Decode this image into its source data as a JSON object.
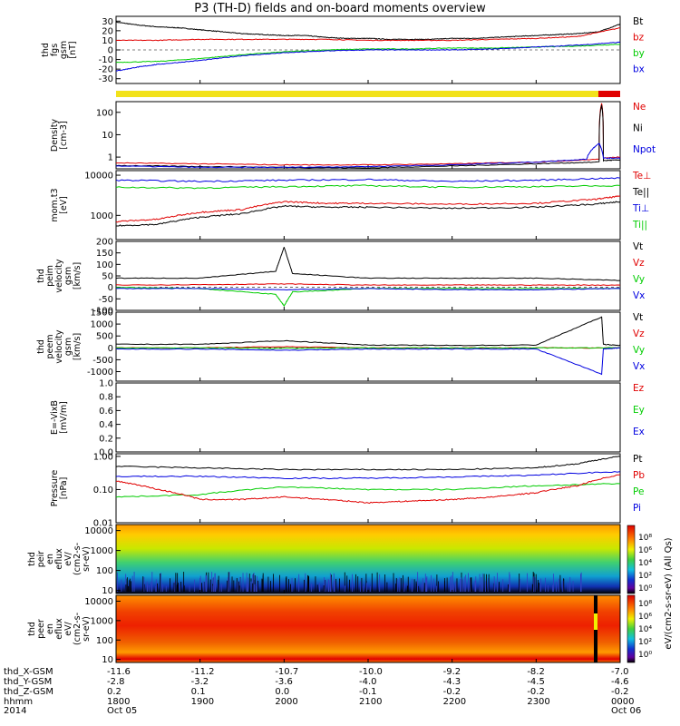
{
  "title": "P3 (TH-D) fields and on-board moments overview",
  "chart_data": {
    "type": "line",
    "title": "P3 (TH-D) fields and on-board moments overview",
    "time_axis": {
      "labels": [
        "1800",
        "1900",
        "2000",
        "2100",
        "2200",
        "2300",
        "0000"
      ],
      "dates": [
        "Oct 05",
        "Oct 06"
      ],
      "year": "2014"
    },
    "orbit_table": {
      "rows": [
        {
          "label": "thd_X-GSM",
          "values": [
            "-11.6",
            "-11.2",
            "-10.7",
            "-10.0",
            "-9.2",
            "-8.2",
            "-7.0"
          ]
        },
        {
          "label": "thd_Y-GSM",
          "values": [
            "-2.8",
            "-3.2",
            "-3.6",
            "-4.0",
            "-4.3",
            "-4.5",
            "-4.6"
          ]
        },
        {
          "label": "thd_Z-GSM",
          "values": [
            "0.2",
            "0.1",
            "0.0",
            "-0.1",
            "-0.2",
            "-0.2",
            "-0.2"
          ]
        },
        {
          "label": "hhmm",
          "values": [
            "1800",
            "1900",
            "2000",
            "2100",
            "2200",
            "2300",
            "0000"
          ]
        },
        {
          "label": "2014",
          "values": [
            "Oct 05",
            "",
            "",
            "",
            "",
            "",
            "Oct 06"
          ]
        }
      ]
    },
    "panels": [
      {
        "ylabel": [
          "thd",
          "fgs",
          "gsm",
          "[nT]"
        ],
        "ylim": [
          -35,
          35
        ],
        "ticks": [
          "30",
          "20",
          "10",
          "0",
          "-10",
          "-20",
          "-30"
        ],
        "legend": [
          {
            "name": "Bt",
            "color": "#000000"
          },
          {
            "name": "bz",
            "color": "#e00000"
          },
          {
            "name": "by",
            "color": "#00cc00"
          },
          {
            "name": "bx",
            "color": "#0000e0"
          }
        ],
        "series": [
          {
            "color": "#000000",
            "x": [
              0,
              0.25,
              0.5,
              0.75,
              1.0,
              1.25,
              1.5,
              1.75,
              2.0,
              2.25,
              2.5,
              2.75,
              3.0,
              3.25,
              3.5,
              3.75,
              4.0,
              4.25,
              4.5,
              4.75,
              5.0,
              5.25,
              5.5,
              5.75,
              6.0
            ],
            "y": [
              29,
              26,
              24,
              23,
              21,
              19,
              17,
              16,
              15,
              15,
              13,
              12,
              12,
              11,
              11,
              11,
              12,
              12,
              13,
              14,
              15,
              16,
              17,
              19,
              27
            ]
          },
          {
            "color": "#e00000",
            "x": [
              0,
              0.5,
              1.0,
              1.5,
              2.0,
              2.5,
              3.0,
              3.5,
              4.0,
              4.5,
              5.0,
              5.5,
              6.0
            ],
            "y": [
              10,
              10,
              11,
              11,
              11,
              11,
              10,
              10,
              10,
              11,
              12,
              14,
              23
            ]
          },
          {
            "color": "#00cc00",
            "x": [
              0,
              0.5,
              1.0,
              1.5,
              2.0,
              2.5,
              3.0,
              3.5,
              4.0,
              4.5,
              5.0,
              5.5,
              6.0
            ],
            "y": [
              -13,
              -12,
              -9,
              -5,
              -2,
              0,
              1,
              1,
              2,
              2,
              3,
              4,
              6
            ]
          },
          {
            "color": "#0000e0",
            "x": [
              0,
              0.25,
              0.5,
              1.0,
              1.5,
              2.0,
              2.5,
              3.0,
              3.5,
              4.0,
              4.5,
              5.0,
              5.5,
              6.0
            ],
            "y": [
              -22,
              -18,
              -15,
              -11,
              -6,
              -3,
              -1,
              0,
              0,
              0,
              1,
              3,
              5,
              8
            ]
          }
        ]
      },
      {
        "ylabel": [
          "Density",
          "[cm-3]"
        ],
        "ylim": [
          0.3,
          300
        ],
        "log": true,
        "ticks": [
          "100",
          "10",
          "1"
        ],
        "legend": [
          {
            "name": "Ne",
            "color": "#e00000"
          },
          {
            "name": "Ni",
            "color": "#000000"
          },
          {
            "name": "Npot",
            "color": "#0000e0"
          }
        ],
        "series": [
          {
            "color": "#e00000",
            "x": [
              0,
              1,
              2,
              3,
              4,
              5,
              5.75,
              5.78,
              5.8,
              6.0
            ],
            "y": [
              0.55,
              0.5,
              0.45,
              0.45,
              0.5,
              0.6,
              0.8,
              250,
              0.9,
              1.0
            ]
          },
          {
            "color": "#000000",
            "x": [
              0,
              1,
              2,
              3,
              4,
              5,
              5.75,
              5.78,
              5.8,
              6.0
            ],
            "y": [
              0.42,
              0.38,
              0.35,
              0.33,
              0.4,
              0.5,
              0.6,
              200,
              0.7,
              0.75
            ]
          },
          {
            "color": "#0000e0",
            "x": [
              0,
              1,
              2,
              3,
              4,
              5,
              5.6,
              5.75,
              5.8,
              6.0
            ],
            "y": [
              0.4,
              0.35,
              0.35,
              0.38,
              0.45,
              0.6,
              0.8,
              4,
              0.9,
              0.9
            ]
          }
        ]
      },
      {
        "ylabel": [
          "mom.t3",
          "[eV]"
        ],
        "ylim": [
          250,
          13000
        ],
        "log": true,
        "ticks": [
          "10000",
          "1000"
        ],
        "legend": [
          {
            "name": "Te⊥",
            "color": "#e00000"
          },
          {
            "name": "Te||",
            "color": "#000000"
          },
          {
            "name": "Ti⊥",
            "color": "#0000e0"
          },
          {
            "name": "Ti||",
            "color": "#00cc00"
          }
        ],
        "series": [
          {
            "color": "#0000e0",
            "x": [
              0,
              1,
              2,
              3,
              4,
              5,
              6
            ],
            "y": [
              7500,
              7000,
              7500,
              7800,
              7000,
              7500,
              8500
            ]
          },
          {
            "color": "#00cc00",
            "x": [
              0,
              1,
              2,
              3,
              4,
              5,
              6
            ],
            "y": [
              5000,
              4800,
              5200,
              5500,
              5000,
              5200,
              5500
            ]
          },
          {
            "color": "#e00000",
            "x": [
              0,
              0.5,
              1.0,
              1.5,
              2.0,
              2.5,
              3.0,
              4.0,
              5.0,
              5.7,
              6.0
            ],
            "y": [
              700,
              800,
              1200,
              1400,
              2200,
              2000,
              2000,
              1900,
              2000,
              2500,
              3000
            ]
          },
          {
            "color": "#000000",
            "x": [
              0,
              0.5,
              1.0,
              1.5,
              2.0,
              2.5,
              3.0,
              4.0,
              5.0,
              5.7,
              6.0
            ],
            "y": [
              550,
              600,
              900,
              1100,
              1700,
              1600,
              1600,
              1500,
              1600,
              1900,
              2200
            ]
          }
        ]
      },
      {
        "ylabel": [
          "thd",
          "peim",
          "velocity",
          "gsm",
          "[km/s]"
        ],
        "ylim": [
          -100,
          200
        ],
        "ticks": [
          "200",
          "150",
          "100",
          "50",
          "0",
          "-50",
          "-100"
        ],
        "legend": [
          {
            "name": "Vt",
            "color": "#000000"
          },
          {
            "name": "Vz",
            "color": "#e00000"
          },
          {
            "name": "Vy",
            "color": "#00cc00"
          },
          {
            "name": "Vx",
            "color": "#0000e0"
          }
        ],
        "series": [
          {
            "color": "#000000",
            "x": [
              0,
              1,
              1.9,
              2.0,
              2.1,
              3,
              4,
              5,
              6
            ],
            "y": [
              40,
              40,
              70,
              175,
              60,
              40,
              40,
              40,
              30
            ]
          },
          {
            "color": "#e00000",
            "x": [
              0,
              1,
              2,
              3,
              4,
              5,
              6
            ],
            "y": [
              10,
              12,
              15,
              10,
              10,
              10,
              10
            ]
          },
          {
            "color": "#00cc00",
            "x": [
              0,
              1,
              1.9,
              2.0,
              2.1,
              3,
              4,
              5,
              6
            ],
            "y": [
              0,
              -5,
              -30,
              -80,
              -20,
              -5,
              -5,
              -5,
              -5
            ]
          },
          {
            "color": "#0000e0",
            "x": [
              0,
              1,
              2,
              3,
              4,
              5,
              6
            ],
            "y": [
              -5,
              -5,
              -10,
              -5,
              -10,
              -10,
              -5
            ]
          }
        ]
      },
      {
        "ylabel": [
          "thd",
          "peem",
          "velocity",
          "gsm",
          "[km/s]"
        ],
        "ylim": [
          -1400,
          1500
        ],
        "ticks": [
          "1500",
          "1000",
          "500",
          "0",
          "-500",
          "-1000"
        ],
        "legend": [
          {
            "name": "Vt",
            "color": "#000000"
          },
          {
            "name": "Vz",
            "color": "#e00000"
          },
          {
            "name": "Vy",
            "color": "#00cc00"
          },
          {
            "name": "Vx",
            "color": "#0000e0"
          }
        ],
        "series": [
          {
            "color": "#000000",
            "x": [
              0,
              1,
              2,
              3,
              4,
              5,
              5.78,
              5.8,
              6.0
            ],
            "y": [
              150,
              150,
              300,
              120,
              100,
              120,
              1300,
              150,
              100
            ]
          },
          {
            "color": "#e00000",
            "x": [
              0,
              1,
              2,
              3,
              4,
              5,
              6
            ],
            "y": [
              0,
              0,
              50,
              0,
              0,
              0,
              0
            ]
          },
          {
            "color": "#00cc00",
            "x": [
              0,
              1,
              2,
              3,
              4,
              5,
              6
            ],
            "y": [
              0,
              0,
              -20,
              0,
              0,
              0,
              0
            ]
          },
          {
            "color": "#0000e0",
            "x": [
              0,
              1,
              2,
              3,
              4,
              5,
              5.78,
              5.8,
              6.0
            ],
            "y": [
              -50,
              -50,
              -100,
              -50,
              -50,
              -50,
              -1100,
              -50,
              0
            ]
          }
        ]
      },
      {
        "ylabel": [
          "E=-VixB",
          "[mV/m]"
        ],
        "ylim": [
          0,
          1
        ],
        "ticks": [
          "1.0",
          "0.8",
          "0.6",
          "0.4",
          "0.2",
          "0.0"
        ],
        "legend": [
          {
            "name": "Ez",
            "color": "#e00000"
          },
          {
            "name": "Ey",
            "color": "#00cc00"
          },
          {
            "name": "Ex",
            "color": "#0000e0"
          }
        ],
        "series": []
      },
      {
        "ylabel": [
          "Pressure",
          "[nPa]"
        ],
        "ylim": [
          0.01,
          1.2
        ],
        "log": true,
        "ticks": [
          "1.00",
          "0.10",
          "0.01"
        ],
        "legend": [
          {
            "name": "Pt",
            "color": "#000000"
          },
          {
            "name": "Pb",
            "color": "#e00000"
          },
          {
            "name": "Pe",
            "color": "#00cc00"
          },
          {
            "name": "Pi",
            "color": "#0000e0"
          }
        ],
        "series": [
          {
            "color": "#000000",
            "x": [
              0,
              1,
              2,
              3,
              4,
              5,
              5.5,
              6.0
            ],
            "y": [
              0.5,
              0.45,
              0.4,
              0.4,
              0.4,
              0.45,
              0.6,
              1.0
            ]
          },
          {
            "color": "#0000e0",
            "x": [
              0,
              1,
              2,
              3,
              4,
              5,
              6
            ],
            "y": [
              0.25,
              0.25,
              0.22,
              0.22,
              0.24,
              0.27,
              0.35
            ]
          },
          {
            "color": "#00cc00",
            "x": [
              0,
              1,
              2,
              3,
              4,
              5,
              6
            ],
            "y": [
              0.06,
              0.07,
              0.12,
              0.1,
              0.1,
              0.13,
              0.15
            ]
          },
          {
            "color": "#e00000",
            "x": [
              0,
              0.5,
              1.0,
              1.5,
              2.0,
              2.5,
              3.0,
              3.5,
              4.0,
              4.5,
              5.0,
              5.5,
              6.0
            ],
            "y": [
              0.18,
              0.1,
              0.05,
              0.05,
              0.06,
              0.05,
              0.04,
              0.045,
              0.05,
              0.06,
              0.08,
              0.13,
              0.28
            ]
          }
        ]
      },
      {
        "ylabel": [
          "thd",
          "peir",
          "en",
          "eflux",
          "eV/",
          "(cm2-s-",
          "sr-eV)"
        ],
        "ylim": [
          7,
          20000
        ],
        "log": true,
        "ticks": [
          "10000",
          "1000",
          "100",
          "10"
        ],
        "type": "heatmap",
        "legend": []
      },
      {
        "ylabel": [
          "thd",
          "peer",
          "en",
          "eflux",
          "eV/",
          "(cm2-s-",
          "sr-eV)"
        ],
        "ylim": [
          7,
          20000
        ],
        "log": true,
        "ticks": [
          "10000",
          "1000",
          "100",
          "10"
        ],
        "type": "heatmap",
        "legend": []
      }
    ],
    "colorbar": {
      "label": "eV/(cm2-s-sr-eV) (All Qs)",
      "ticks_top": [
        "10⁸",
        "10⁶",
        "10⁴",
        "10²",
        "10⁰"
      ],
      "ticks_bottom": [
        "10⁸",
        "10⁶",
        "10⁴",
        "10²",
        "10⁰"
      ]
    }
  }
}
